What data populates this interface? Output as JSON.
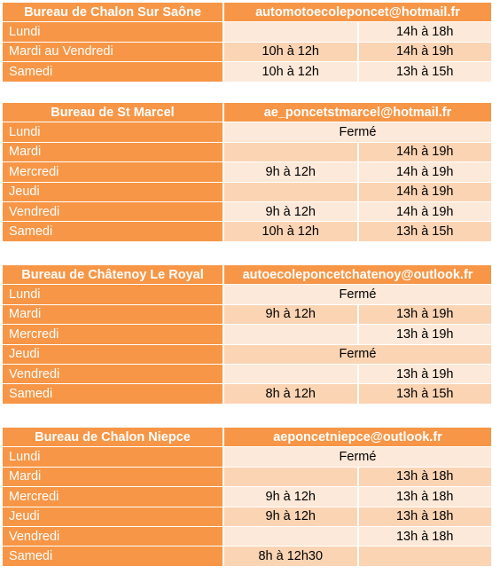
{
  "offices": [
    {
      "name": "Bureau de Chalon Sur Saône",
      "email": "automotoecoleponcet@hotmail.fr",
      "rows": [
        {
          "day": "Lundi",
          "morning": "",
          "afternoon": "14h à 18h"
        },
        {
          "day": "Mardi au Vendredi",
          "morning": "10h à 12h",
          "afternoon": "14h à 19h"
        },
        {
          "day": "Samedi",
          "morning": "10h à 12h",
          "afternoon": "13h à 15h"
        }
      ]
    },
    {
      "name": "Bureau de St Marcel",
      "email": "ae_poncetstmarcel@hotmail.fr",
      "rows": [
        {
          "day": "Lundi",
          "merged": "Fermé"
        },
        {
          "day": "Mardi",
          "morning": "",
          "afternoon": "14h à 19h"
        },
        {
          "day": "Mercredi",
          "morning": "9h à 12h",
          "afternoon": "14h à 19h"
        },
        {
          "day": "Jeudi",
          "morning": "",
          "afternoon": "14h à 19h"
        },
        {
          "day": "Vendredi",
          "morning": "9h à 12h",
          "afternoon": "14h à 19h"
        },
        {
          "day": "Samedi",
          "morning": "10h à 12h",
          "afternoon": "13h à 15h"
        }
      ]
    },
    {
      "name": "Bureau de Châtenoy Le Royal",
      "email": "autoecoleponcetchatenoy@outlook.fr",
      "rows": [
        {
          "day": "Lundi",
          "merged": "Fermé"
        },
        {
          "day": "Mardi",
          "morning": "9h à 12h",
          "afternoon": "13h à 19h"
        },
        {
          "day": "Mercredi",
          "morning": "",
          "afternoon": "13h à 19h"
        },
        {
          "day": "Jeudi",
          "merged": "Fermé"
        },
        {
          "day": "Vendredi",
          "morning": "",
          "afternoon": "13h à 19h"
        },
        {
          "day": "Samedi",
          "morning": "8h à 12h",
          "afternoon": "13h à 15h"
        }
      ]
    },
    {
      "name": "Bureau de Chalon Niepce",
      "email": "aeponcetniepce@outlook.fr",
      "rows": [
        {
          "day": "Lundi",
          "merged": "Fermé"
        },
        {
          "day": "Mardi",
          "morning": "",
          "afternoon": "13h à 18h"
        },
        {
          "day": "Mercredi",
          "morning": "9h à 12h",
          "afternoon": "13h à 18h"
        },
        {
          "day": "Jeudi",
          "morning": "9h à 12h",
          "afternoon": "13h à 18h"
        },
        {
          "day": "Vendredi",
          "morning": "",
          "afternoon": "13h à 18h"
        },
        {
          "day": "Samedi",
          "morning": "8h à 12h30",
          "afternoon": ""
        }
      ]
    }
  ]
}
